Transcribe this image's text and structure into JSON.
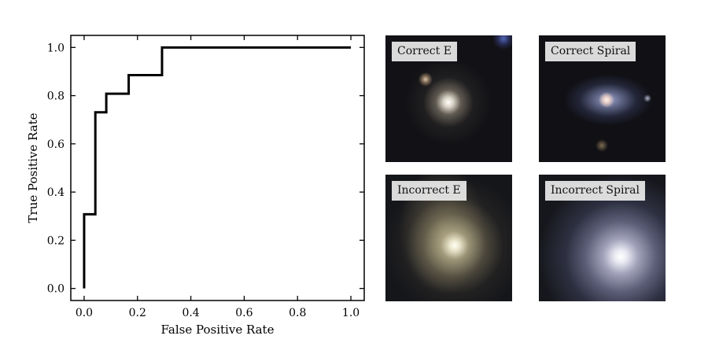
{
  "chart_data": {
    "type": "line",
    "xlabel": "False Positive Rate",
    "ylabel": "True Positive Rate",
    "xlim": [
      -0.05,
      1.05
    ],
    "ylim": [
      -0.05,
      1.05
    ],
    "xticks": [
      0.0,
      0.2,
      0.4,
      0.6,
      0.8,
      1.0
    ],
    "yticks": [
      0.0,
      0.2,
      0.4,
      0.6,
      0.8,
      1.0
    ],
    "xtick_labels": [
      "0.0",
      "0.2",
      "0.4",
      "0.6",
      "0.8",
      "1.0"
    ],
    "ytick_labels": [
      "0.0",
      "0.2",
      "0.4",
      "0.6",
      "0.8",
      "1.0"
    ],
    "grid": false,
    "series": [
      {
        "x": [
          0.0,
          0.0,
          0.042,
          0.042,
          0.083,
          0.083,
          0.167,
          0.167,
          0.292,
          0.292,
          1.0
        ],
        "y": [
          0.0,
          0.308,
          0.308,
          0.731,
          0.731,
          0.808,
          0.808,
          0.885,
          0.885,
          1.0,
          1.0
        ],
        "color": "#000000"
      }
    ]
  },
  "thumbnails": [
    {
      "label": "Correct E"
    },
    {
      "label": "Correct Spiral"
    },
    {
      "label": "Incorrect E"
    },
    {
      "label": "Incorrect Spiral"
    }
  ]
}
